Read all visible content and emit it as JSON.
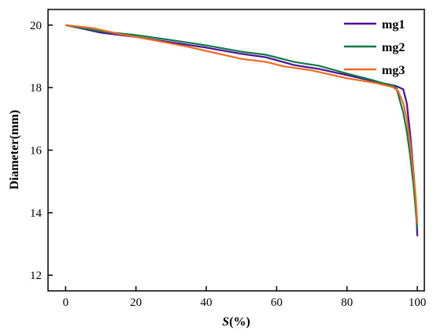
{
  "chart_data": {
    "type": "line",
    "title": "",
    "xlabel_italic": "S",
    "xlabel_rest": "(%)",
    "ylabel": "Diameter(mm)",
    "xlim": [
      -5,
      102
    ],
    "ylim": [
      11.5,
      20.5
    ],
    "x_ticks": [
      0,
      20,
      40,
      60,
      80,
      100
    ],
    "y_ticks": [
      12,
      14,
      16,
      18,
      20
    ],
    "grid": false,
    "legend_position": "top-right",
    "series": [
      {
        "name": "mg1",
        "color": "#4b0f99",
        "points": [
          [
            0,
            20.0
          ],
          [
            5,
            19.88
          ],
          [
            10,
            19.76
          ],
          [
            20,
            19.62
          ],
          [
            30,
            19.45
          ],
          [
            40,
            19.28
          ],
          [
            50,
            19.08
          ],
          [
            57,
            18.97
          ],
          [
            65,
            18.72
          ],
          [
            72,
            18.6
          ],
          [
            80,
            18.4
          ],
          [
            87,
            18.22
          ],
          [
            94,
            18.05
          ],
          [
            96,
            17.95
          ],
          [
            97,
            17.5
          ],
          [
            98,
            16.5
          ],
          [
            99,
            15.2
          ],
          [
            99.6,
            14.2
          ],
          [
            100,
            13.25
          ]
        ]
      },
      {
        "name": "mg2",
        "color": "#117a45",
        "points": [
          [
            0,
            20.0
          ],
          [
            10,
            19.8
          ],
          [
            20,
            19.68
          ],
          [
            30,
            19.52
          ],
          [
            40,
            19.35
          ],
          [
            50,
            19.15
          ],
          [
            57,
            19.05
          ],
          [
            65,
            18.82
          ],
          [
            72,
            18.7
          ],
          [
            80,
            18.45
          ],
          [
            87,
            18.25
          ],
          [
            94,
            18.02
          ],
          [
            95,
            17.6
          ],
          [
            96,
            17.2
          ],
          [
            97,
            16.6
          ],
          [
            98,
            15.8
          ],
          [
            99,
            14.8
          ],
          [
            99.6,
            14.0
          ],
          [
            100,
            13.5
          ]
        ]
      },
      {
        "name": "mg3",
        "color": "#f26b1d",
        "points": [
          [
            0,
            20.0
          ],
          [
            8,
            19.9
          ],
          [
            15,
            19.72
          ],
          [
            25,
            19.52
          ],
          [
            35,
            19.3
          ],
          [
            42,
            19.12
          ],
          [
            50,
            18.92
          ],
          [
            57,
            18.82
          ],
          [
            62,
            18.68
          ],
          [
            70,
            18.55
          ],
          [
            80,
            18.3
          ],
          [
            88,
            18.15
          ],
          [
            93,
            18.02
          ],
          [
            94.5,
            17.9
          ],
          [
            96,
            17.5
          ],
          [
            97,
            17.0
          ],
          [
            98,
            16.2
          ],
          [
            99,
            15.2
          ],
          [
            99.6,
            14.4
          ],
          [
            100,
            13.65
          ]
        ]
      }
    ]
  }
}
